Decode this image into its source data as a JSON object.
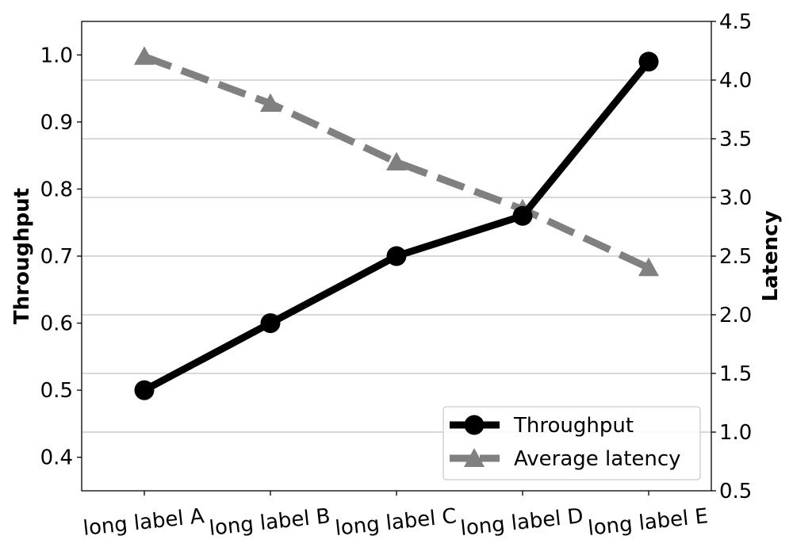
{
  "chart_data": {
    "type": "line",
    "categories": [
      "long label A",
      "long label B",
      "long label C",
      "long label D",
      "long label E"
    ],
    "series": [
      {
        "name": "Throughput",
        "axis": "left",
        "values": [
          0.5,
          0.6,
          0.7,
          0.76,
          0.99
        ],
        "color": "#000000",
        "line_style": "solid",
        "marker": "circle"
      },
      {
        "name": "Average latency",
        "axis": "right",
        "values": [
          4.2,
          3.8,
          3.3,
          2.9,
          2.4
        ],
        "color": "#808080",
        "line_style": "dashed",
        "marker": "triangle"
      }
    ],
    "ylabel": "Throughput",
    "y2label": "Latency",
    "ylim": [
      0.35,
      1.05
    ],
    "y2lim": [
      0.5,
      4.5
    ],
    "yticks": [
      "0.4",
      "0.5",
      "0.6",
      "0.7",
      "0.8",
      "0.9",
      "1.0"
    ],
    "y2ticks": [
      "0.5",
      "1.0",
      "1.5",
      "2.0",
      "2.5",
      "3.0",
      "3.5",
      "4.0",
      "4.5"
    ],
    "grid": "horizontal, right axis",
    "legend_position": "lower-right",
    "xtick_rotation": "slight"
  }
}
